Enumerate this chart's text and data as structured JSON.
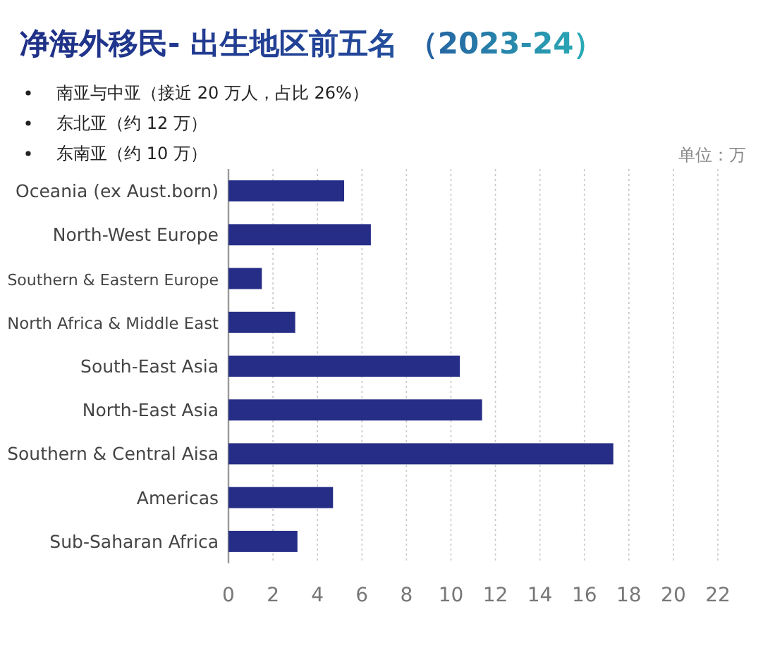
{
  "chart_data": {
    "type": "bar",
    "orientation": "horizontal",
    "title": "净海外移民- 出生地区前五名 （2023-24）",
    "annotations": [
      "南亚与中亚（接近 20 万人，占比 26%）",
      "东北亚（约 12 万）",
      "东南亚（约 10 万）"
    ],
    "xlabel": "单位：万",
    "categories": [
      "Oceania (ex Aust.born)",
      "North-West Europe",
      "Southern & Eastern Europe",
      "North Africa & Middle East",
      "South-East Asia",
      "North-East Asia",
      "Southern & Central Aisa",
      "Americas",
      "Sub-Saharan Africa"
    ],
    "values": [
      5.2,
      6.4,
      1.5,
      3.0,
      10.4,
      11.4,
      17.3,
      4.7,
      3.1
    ],
    "color": "#262d86",
    "xlim": [
      0,
      22
    ],
    "xticks": [
      0,
      2,
      4,
      6,
      8,
      10,
      12,
      14,
      16,
      18,
      20,
      22
    ],
    "grid": "x"
  }
}
